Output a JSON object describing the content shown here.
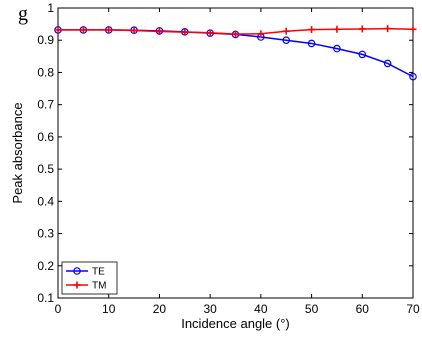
{
  "chart_data": {
    "type": "line",
    "xlabel": "Incidence angle (°)",
    "ylabel": "Peak absorbance",
    "xlim": [
      0,
      70
    ],
    "ylim": [
      0.1,
      1
    ],
    "xticks": [
      0,
      10,
      20,
      30,
      40,
      50,
      60,
      70
    ],
    "yticks": [
      0.1,
      0.2,
      0.3,
      0.4,
      0.5,
      0.6,
      0.7,
      0.8,
      0.9,
      1
    ],
    "grid": false,
    "legend_position": "bottom-left",
    "x": [
      0,
      5,
      10,
      15,
      20,
      25,
      30,
      35,
      40,
      45,
      50,
      55,
      60,
      65,
      70
    ],
    "series": [
      {
        "name": "TE",
        "color": "#0000ff",
        "marker": "circle",
        "values": [
          0.932,
          0.932,
          0.932,
          0.931,
          0.929,
          0.926,
          0.922,
          0.918,
          0.91,
          0.9,
          0.89,
          0.874,
          0.856,
          0.828,
          0.787
        ]
      },
      {
        "name": "TM",
        "color": "#ff0000",
        "marker": "plus",
        "values": [
          0.932,
          0.932,
          0.932,
          0.93,
          0.927,
          0.925,
          0.923,
          0.919,
          0.92,
          0.928,
          0.933,
          0.934,
          0.935,
          0.936,
          0.934
        ]
      }
    ]
  },
  "cut_text": "g"
}
